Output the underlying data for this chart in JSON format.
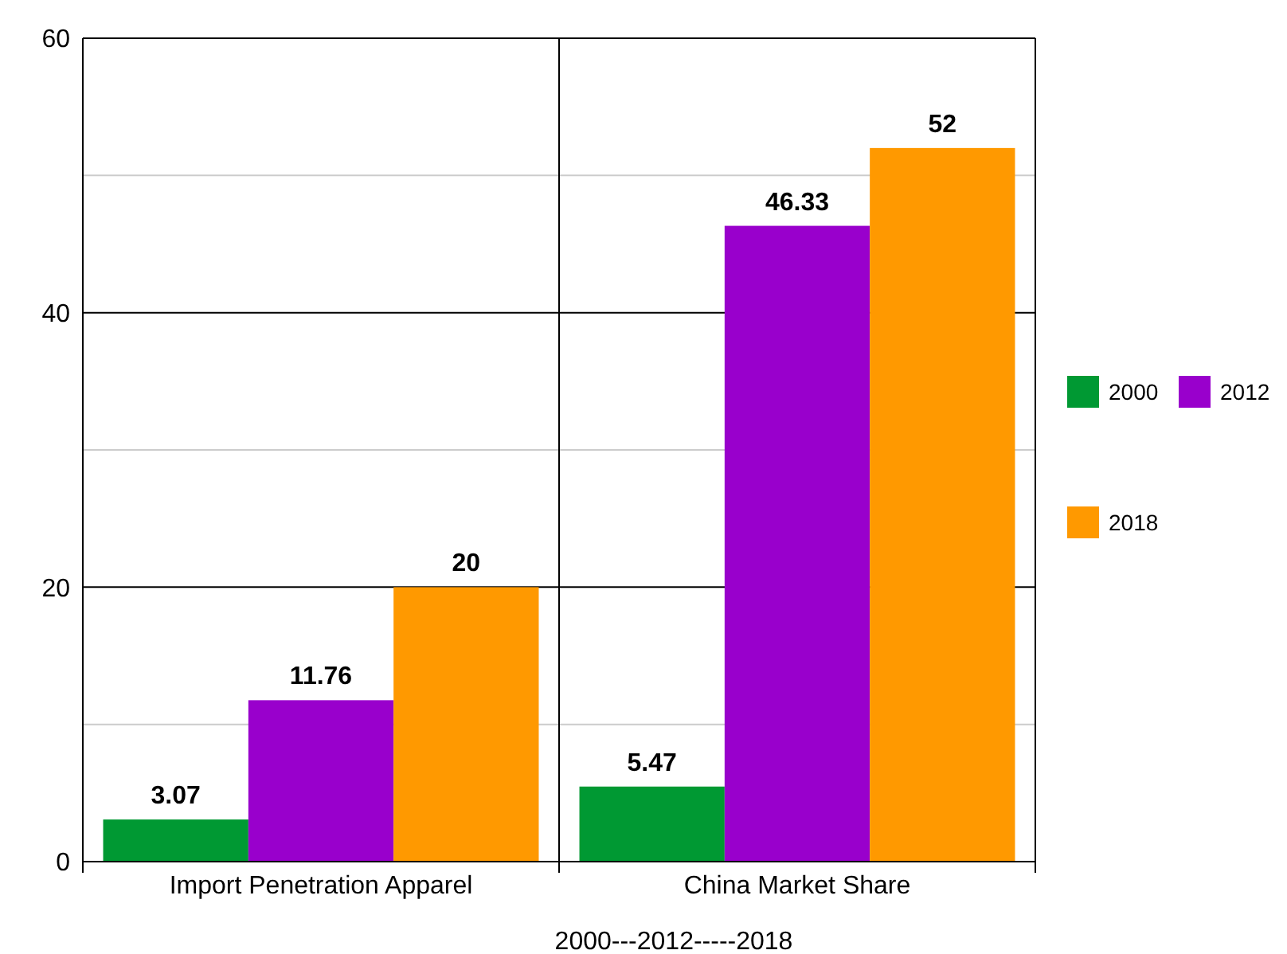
{
  "chart_data": {
    "type": "bar",
    "xlabel": "2000---2012-----2018",
    "categories": [
      "Import Penetration Apparel",
      "China Market Share"
    ],
    "series": [
      {
        "name": "2000",
        "color": "#009933",
        "values": [
          3.07,
          5.47
        ]
      },
      {
        "name": "2012",
        "color": "#9900cc",
        "values": [
          11.76,
          46.33
        ]
      },
      {
        "name": "2018",
        "color": "#ff9900",
        "values": [
          20,
          52
        ]
      }
    ],
    "ylim": [
      0,
      60
    ],
    "yticks": [
      0,
      {
        "value": 10,
        "label": null
      },
      20,
      {
        "value": 30,
        "label": null
      },
      40,
      {
        "value": 50,
        "label": null
      },
      60
    ],
    "grid": true,
    "legend": "right",
    "data_labels": true
  }
}
